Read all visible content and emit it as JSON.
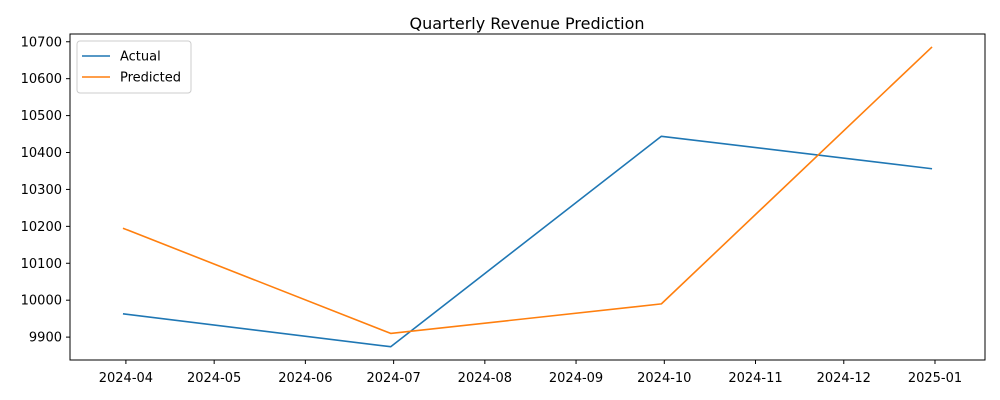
{
  "chart_data": {
    "type": "line",
    "title": "Quarterly Revenue Prediction",
    "xlabel": "",
    "ylabel": "",
    "x": [
      "2024-03-31",
      "2024-06-30",
      "2024-09-30",
      "2024-12-31"
    ],
    "series": [
      {
        "name": "Actual",
        "color": "#1f77b4",
        "values": [
          9963,
          9874,
          10444,
          10356
        ]
      },
      {
        "name": "Predicted",
        "color": "#ff7f0e",
        "values": [
          10195,
          9910,
          9990,
          10686
        ]
      }
    ],
    "x_ticks": [
      "2024-04",
      "2024-05",
      "2024-06",
      "2024-07",
      "2024-08",
      "2024-09",
      "2024-10",
      "2024-11",
      "2024-12",
      "2025-01"
    ],
    "x_tick_dates": [
      "2024-04-01",
      "2024-05-01",
      "2024-06-01",
      "2024-07-01",
      "2024-08-01",
      "2024-09-01",
      "2024-10-01",
      "2024-11-01",
      "2024-12-01",
      "2025-01-01"
    ],
    "y_ticks": [
      "9900",
      "10000",
      "10100",
      "10200",
      "10300",
      "10400",
      "10500",
      "10600",
      "10700"
    ],
    "y_tick_values": [
      9900,
      10000,
      10100,
      10200,
      10300,
      10400,
      10500,
      10600,
      10700
    ],
    "xlim": [
      "2024-03-13",
      "2025-01-18"
    ],
    "ylim": [
      9838,
      10721
    ],
    "grid": false,
    "legend_position": "top-left"
  }
}
